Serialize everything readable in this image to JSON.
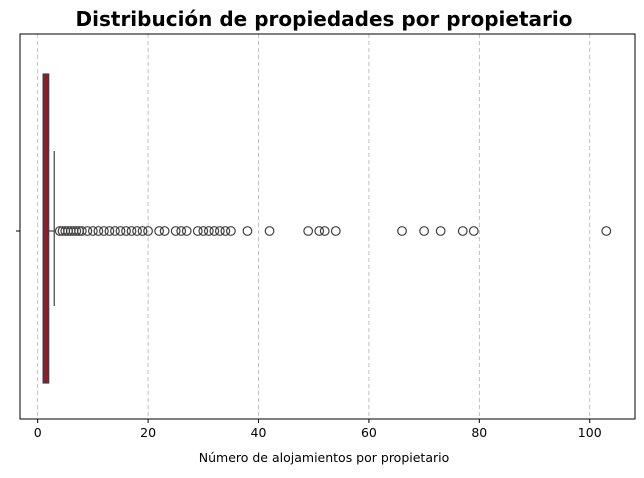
{
  "chart_data": {
    "type": "box",
    "orientation": "horizontal",
    "title": "Distribución de propiedades por propietario",
    "xlabel": "Número de alojamientos por propietario",
    "ylabel": "",
    "xlim": [
      -3.2,
      108.2
    ],
    "xticks": [
      0,
      20,
      40,
      60,
      80,
      100
    ],
    "grid": "x-dashed",
    "box": {
      "color": "#8b1e2b",
      "q1": 1,
      "median": 1,
      "q3": 2,
      "whisker_low": 1,
      "whisker_high": 3
    },
    "outliers": [
      4,
      4.5,
      5,
      5.5,
      6,
      6.5,
      7,
      7.5,
      8,
      9,
      10,
      11,
      12,
      13,
      14,
      15,
      16,
      17,
      18,
      19,
      20,
      22,
      23,
      25,
      26,
      27,
      29,
      30,
      31,
      32,
      33,
      34,
      35,
      38,
      42,
      49,
      51,
      52,
      54,
      66,
      70,
      73,
      77,
      79,
      103
    ]
  }
}
